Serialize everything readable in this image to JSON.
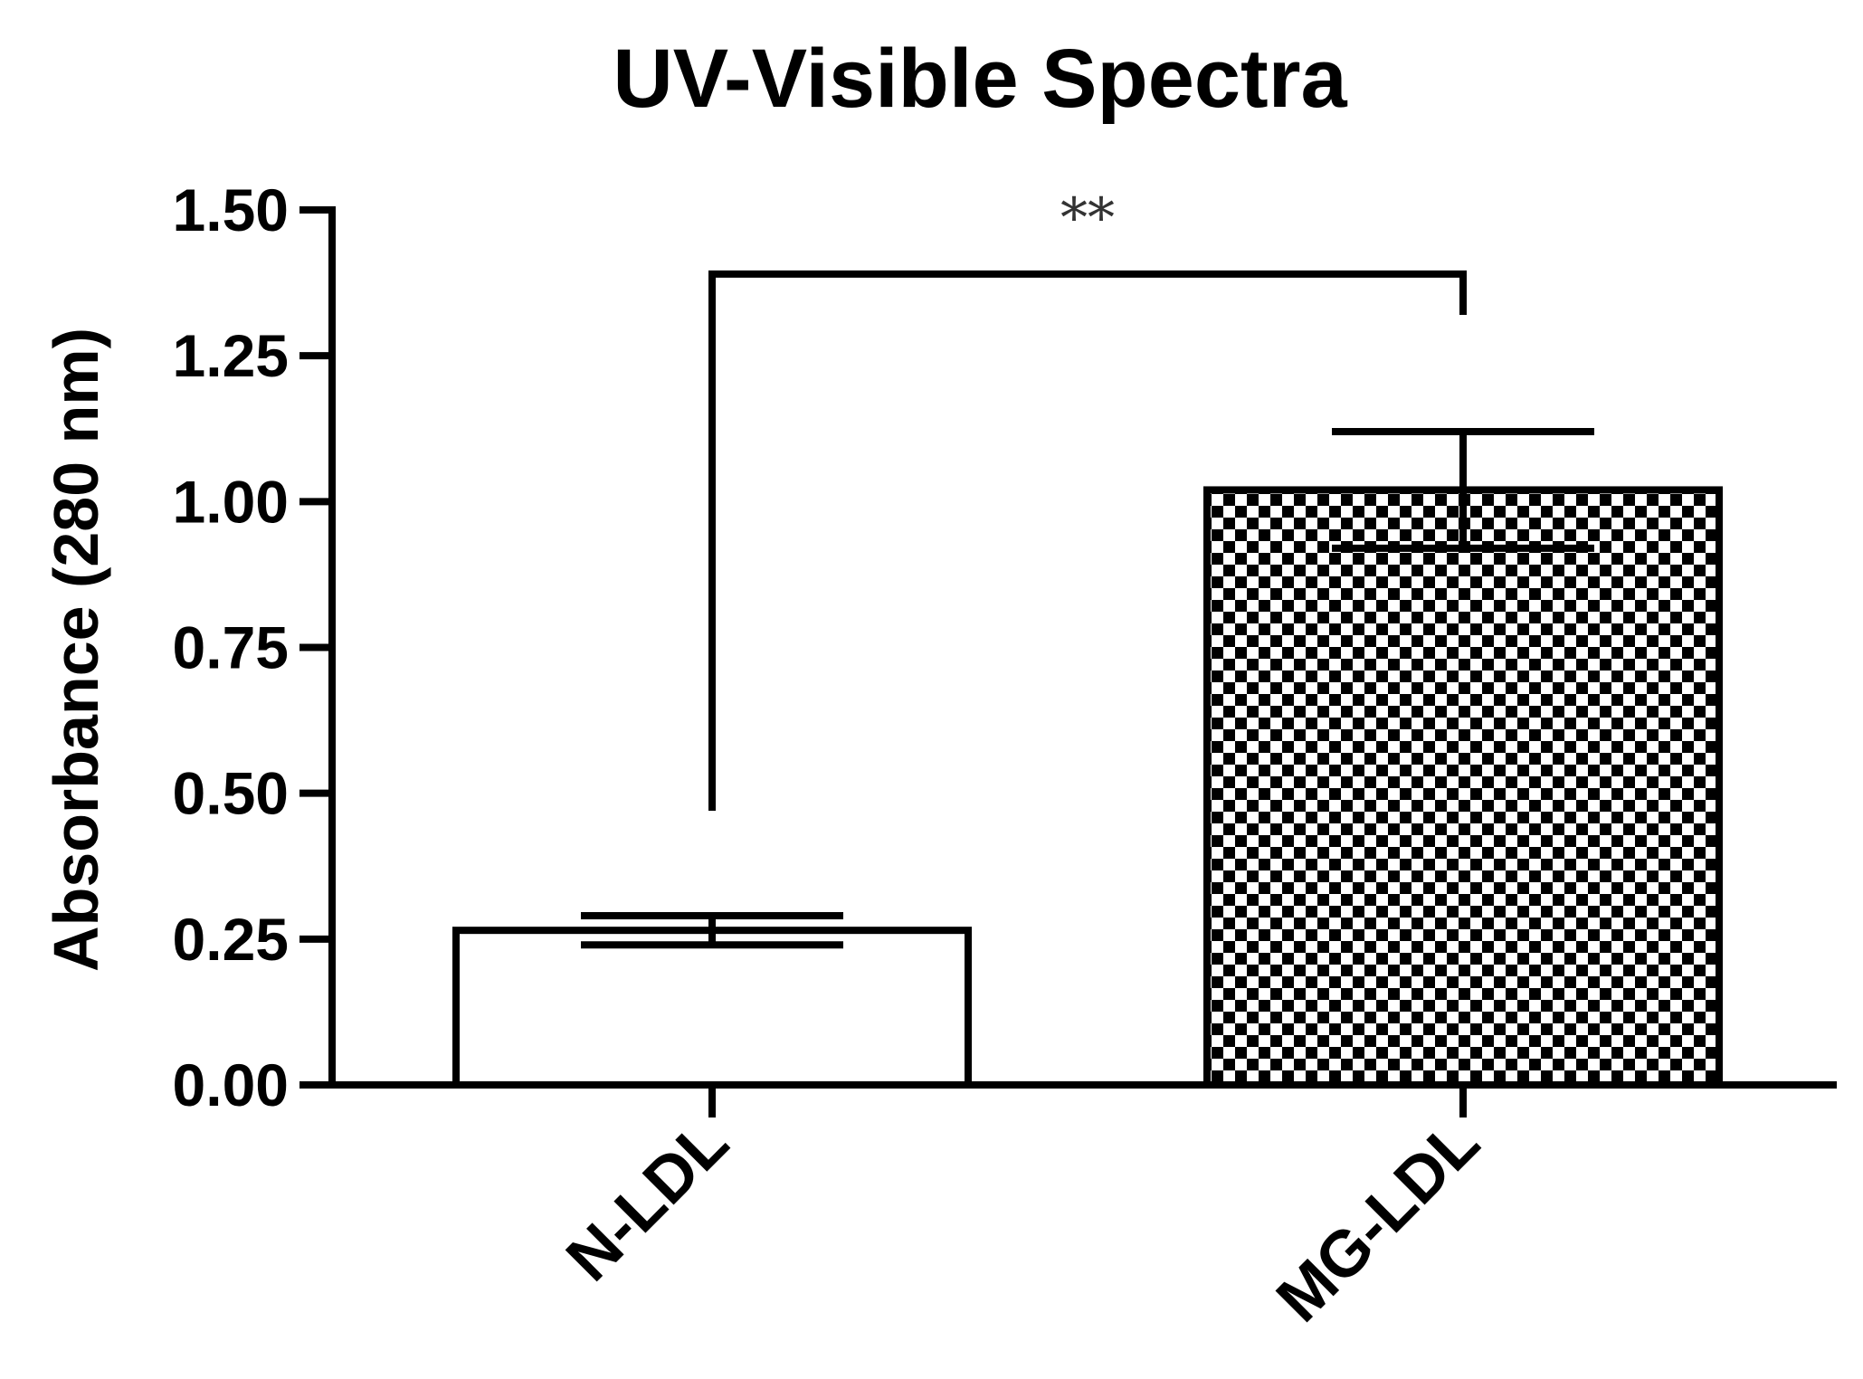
{
  "chart_data": {
    "type": "bar",
    "title": "UV-Visible Spectra",
    "xlabel": "",
    "ylabel": "Absorbance (280 nm)",
    "categories": [
      "N-LDL",
      "MG-LDL"
    ],
    "values": [
      0.265,
      1.02
    ],
    "errors": [
      0.025,
      0.1
    ],
    "bar_fills": [
      "plain-white",
      "checkerboard"
    ],
    "ylim": [
      0,
      1.5
    ],
    "yticks": [
      0,
      0.25,
      0.5,
      0.75,
      1.0,
      1.25,
      1.5
    ],
    "ytick_labels": [
      "0.00",
      "0.25",
      "0.50",
      "0.75",
      "1.00",
      "1.25",
      "1.50"
    ],
    "significance": {
      "label": "**",
      "between": [
        "N-LDL",
        "MG-LDL"
      ],
      "bracket_y": 1.39,
      "left_drop_to": 0.47,
      "right_drop_to": 1.32
    },
    "grid": false,
    "legend": "none",
    "colors": {
      "axis": "#000000",
      "bar_stroke": "#000000",
      "bar_fill": "#ffffff",
      "pattern_dark": "#000000",
      "significance_text": "#333333"
    }
  }
}
